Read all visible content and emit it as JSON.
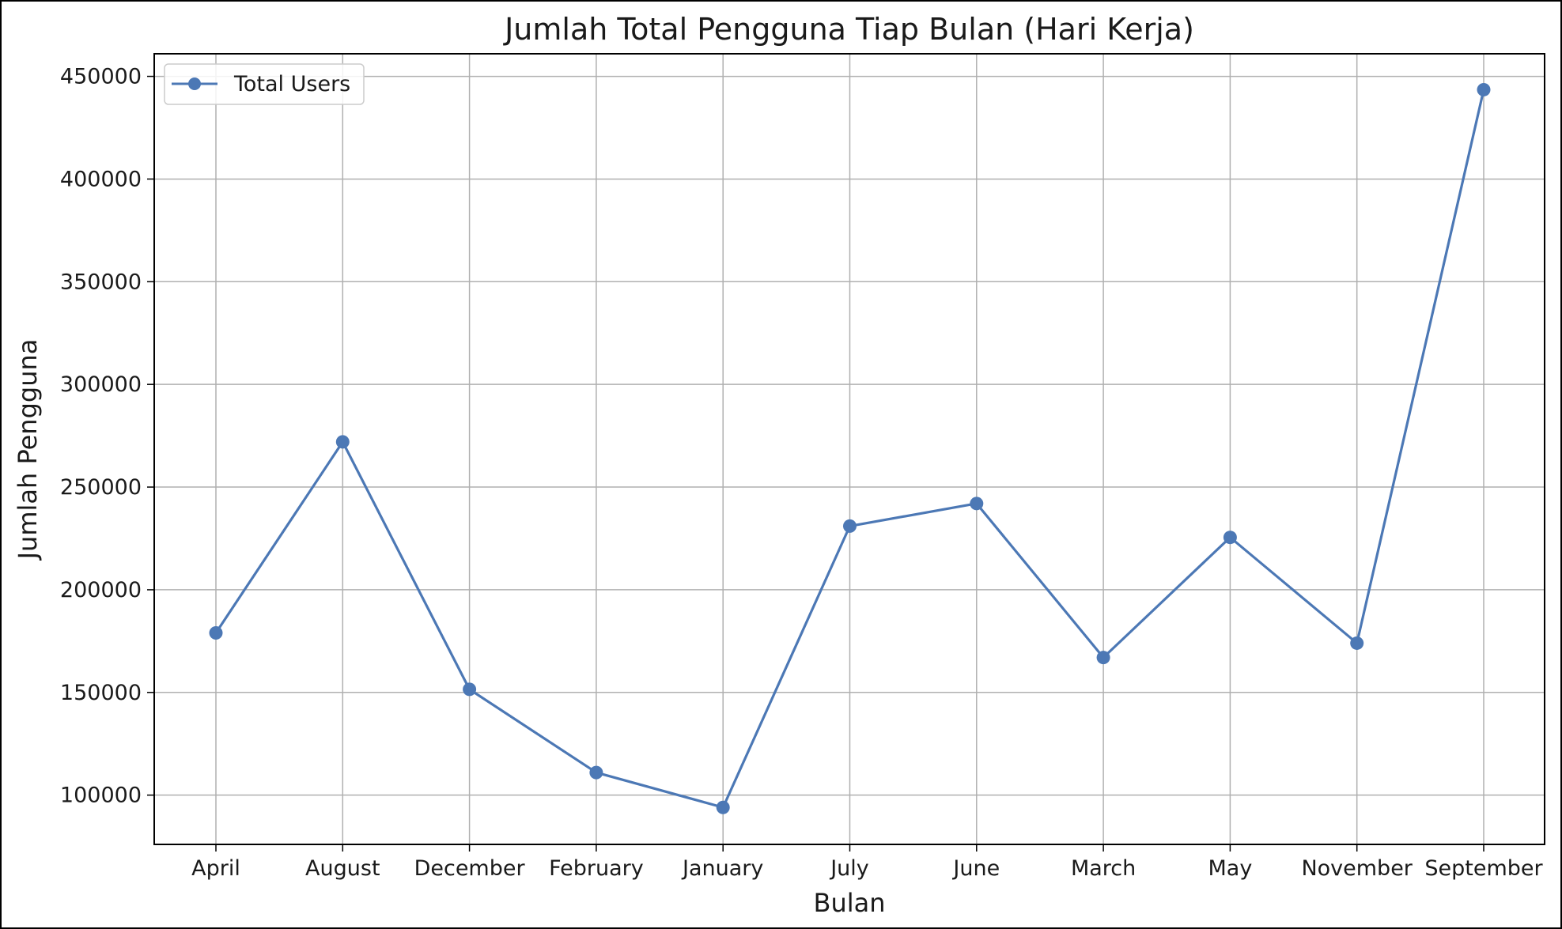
{
  "chart_data": {
    "type": "line",
    "title": "Jumlah Total Pengguna Tiap Bulan (Hari Kerja)",
    "xlabel": "Bulan",
    "ylabel": "Jumlah Pengguna",
    "categories": [
      "April",
      "August",
      "December",
      "February",
      "January",
      "July",
      "June",
      "March",
      "May",
      "November",
      "September"
    ],
    "series": [
      {
        "name": "Total Users",
        "color": "#4c78b5",
        "marker": "circle",
        "values": [
          179000,
          272000,
          151500,
          111000,
          94000,
          231000,
          242000,
          167000,
          225500,
          174000,
          443500
        ]
      }
    ],
    "ylim": [
      76000,
      461000
    ],
    "yticks": [
      100000,
      150000,
      200000,
      250000,
      300000,
      350000,
      400000,
      450000
    ],
    "ytick_labels": [
      "100000",
      "150000",
      "200000",
      "250000",
      "300000",
      "350000",
      "400000",
      "450000"
    ],
    "grid": true,
    "legend": "top-left",
    "grid_color": "#b0b0b0"
  }
}
